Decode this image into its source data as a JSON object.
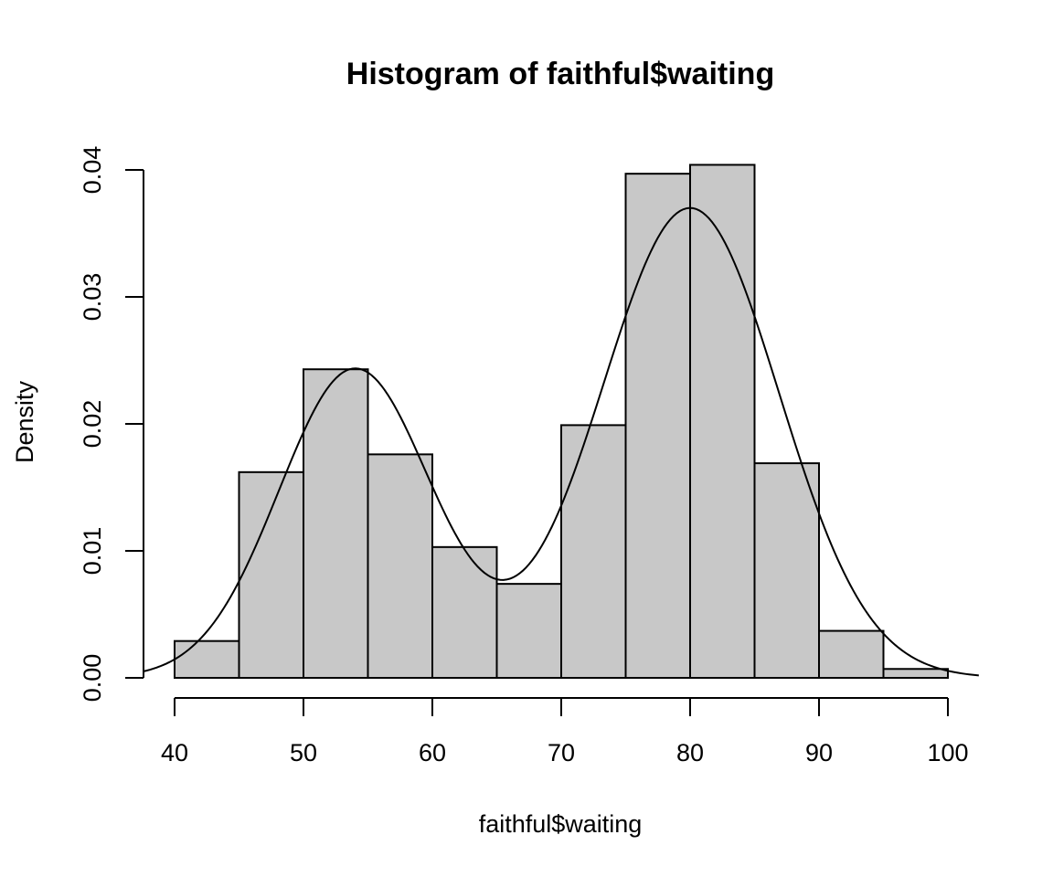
{
  "chart_data": {
    "type": "bar",
    "title": "Histogram of faithful$waiting",
    "xlabel": "faithful$waiting",
    "ylabel": "Density",
    "bins": [
      {
        "from": 40,
        "to": 45,
        "density": 0.0029
      },
      {
        "from": 45,
        "to": 50,
        "density": 0.0162
      },
      {
        "from": 50,
        "to": 55,
        "density": 0.0243
      },
      {
        "from": 55,
        "to": 60,
        "density": 0.0176
      },
      {
        "from": 60,
        "to": 65,
        "density": 0.0103
      },
      {
        "from": 65,
        "to": 70,
        "density": 0.0074
      },
      {
        "from": 70,
        "to": 75,
        "density": 0.0199
      },
      {
        "from": 75,
        "to": 80,
        "density": 0.0397
      },
      {
        "from": 80,
        "to": 85,
        "density": 0.0404
      },
      {
        "from": 85,
        "to": 90,
        "density": 0.0169
      },
      {
        "from": 90,
        "to": 95,
        "density": 0.0037
      },
      {
        "from": 95,
        "to": 100,
        "density": 0.0007
      }
    ],
    "x_ticks": [
      40,
      50,
      60,
      70,
      80,
      90,
      100
    ],
    "x_tick_labels": [
      "40",
      "50",
      "60",
      "70",
      "80",
      "90",
      "100"
    ],
    "y_ticks": [
      0,
      0.01,
      0.02,
      0.03,
      0.04
    ],
    "y_tick_labels": [
      "0.00",
      "0.01",
      "0.02",
      "0.03",
      "0.04"
    ],
    "xlim": [
      37.6,
      102.4
    ],
    "ylim": [
      0,
      0.0404
    ],
    "density_curve": {
      "components": [
        {
          "weight": 0.36,
          "mean": 54.0,
          "sd": 5.9
        },
        {
          "weight": 0.64,
          "mean": 80.0,
          "sd": 6.9
        }
      ],
      "x_range": [
        37.6,
        102.4
      ]
    },
    "grid": false,
    "legend": "none",
    "colors": {
      "bar_fill": "#c8c8c8",
      "bar_stroke": "#000000",
      "curve": "#000000"
    }
  }
}
